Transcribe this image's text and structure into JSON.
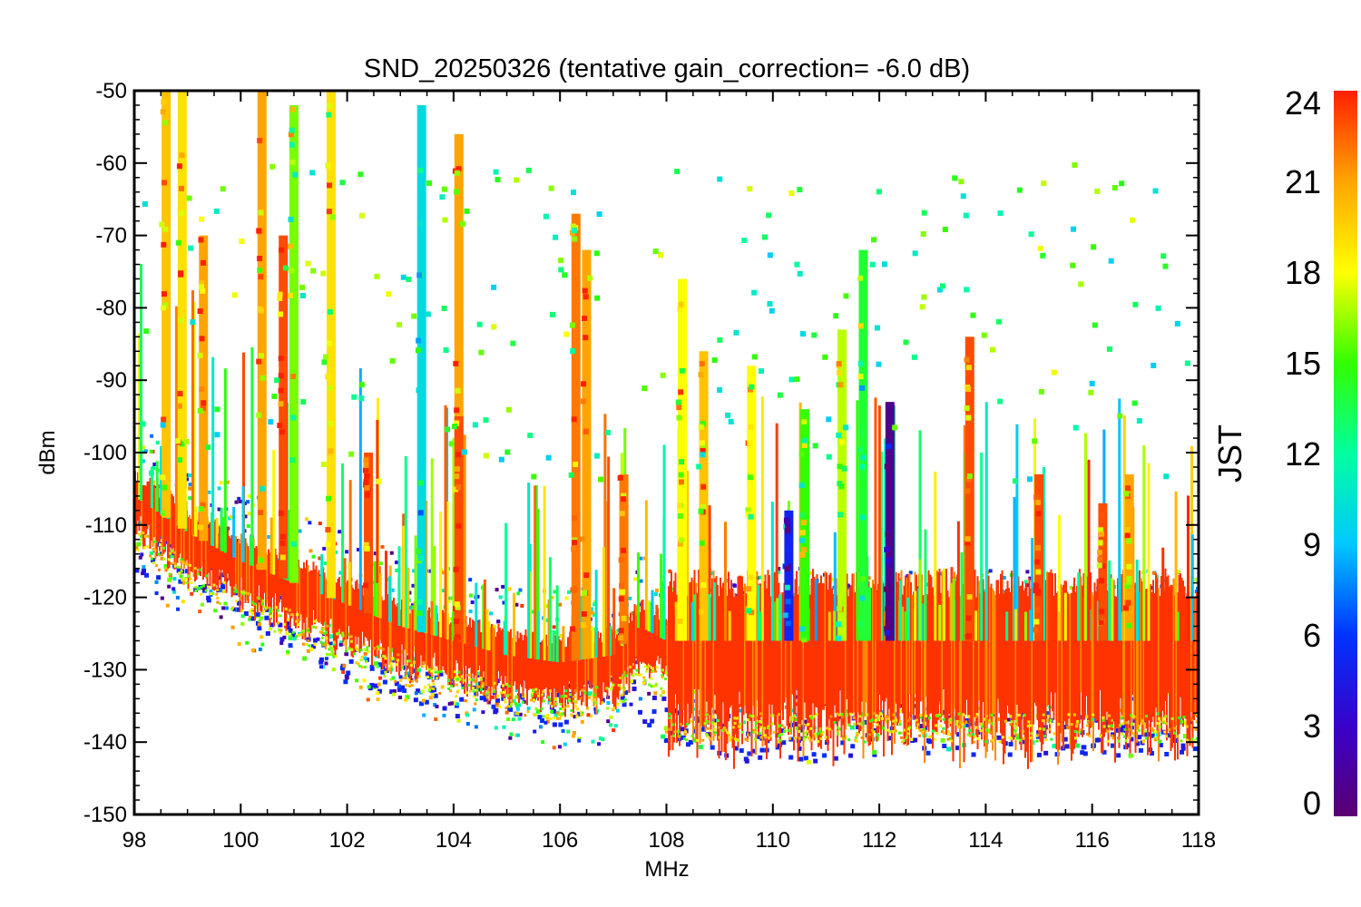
{
  "chart_data": {
    "type": "scatter",
    "title": "SND_20250326 (tentative gain_correction= -6.0 dB)",
    "xlabel": "MHz",
    "ylabel": "dBm",
    "xlim": [
      98,
      118
    ],
    "ylim": [
      -150,
      -50
    ],
    "xticks": [
      "98",
      "100",
      "102",
      "104",
      "106",
      "108",
      "110",
      "112",
      "114",
      "116",
      "118"
    ],
    "yticks": [
      "-50",
      "-60",
      "-70",
      "-80",
      "-90",
      "-100",
      "-110",
      "-120",
      "-130",
      "-140",
      "-150"
    ],
    "colorbar": {
      "label": "JST",
      "range": [
        0,
        24
      ],
      "ticks": [
        "0",
        "3",
        "6",
        "9",
        "12",
        "15",
        "18",
        "21",
        "24"
      ],
      "colormap": "rainbow (purple → blue → cyan → green → yellow → orange → red)"
    },
    "noise_floor": [
      {
        "x": 98,
        "y": -106
      },
      {
        "x": 99,
        "y": -111
      },
      {
        "x": 100,
        "y": -115
      },
      {
        "x": 101,
        "y": -118
      },
      {
        "x": 102,
        "y": -121
      },
      {
        "x": 103,
        "y": -124
      },
      {
        "x": 104,
        "y": -126
      },
      {
        "x": 105,
        "y": -128
      },
      {
        "x": 106,
        "y": -129
      },
      {
        "x": 107,
        "y": -128
      },
      {
        "x": 107.5,
        "y": -124
      },
      {
        "x": 108,
        "y": -126
      },
      {
        "x": 110,
        "y": -126
      },
      {
        "x": 112,
        "y": -126
      },
      {
        "x": 114,
        "y": -126
      },
      {
        "x": 116,
        "y": -126
      },
      {
        "x": 118,
        "y": -126
      }
    ],
    "low_envelope": [
      {
        "x": 98,
        "y": -115
      },
      {
        "x": 99,
        "y": -117
      },
      {
        "x": 100,
        "y": -121
      },
      {
        "x": 101,
        "y": -126
      },
      {
        "x": 102,
        "y": -130
      },
      {
        "x": 103,
        "y": -132
      },
      {
        "x": 104,
        "y": -135
      },
      {
        "x": 105,
        "y": -134
      },
      {
        "x": 106,
        "y": -136
      },
      {
        "x": 107,
        "y": -132
      },
      {
        "x": 108,
        "y": -138
      },
      {
        "x": 110,
        "y": -142
      },
      {
        "x": 112,
        "y": -140
      },
      {
        "x": 114,
        "y": -140
      },
      {
        "x": 116,
        "y": -140
      },
      {
        "x": 118,
        "y": -141
      }
    ],
    "signal_lines": [
      {
        "x": 98.6,
        "ytop": -50,
        "jst": 20
      },
      {
        "x": 98.9,
        "ytop": -50,
        "jst": 19
      },
      {
        "x": 99.3,
        "ytop": -70,
        "jst": 21
      },
      {
        "x": 100.4,
        "ytop": -50,
        "jst": 21
      },
      {
        "x": 100.8,
        "ytop": -70,
        "jst": 23
      },
      {
        "x": 101.0,
        "ytop": -52,
        "jst": 16
      },
      {
        "x": 101.7,
        "ytop": -50,
        "jst": 19
      },
      {
        "x": 102.4,
        "ytop": -100,
        "jst": 23
      },
      {
        "x": 103.4,
        "ytop": -52,
        "jst": 10
      },
      {
        "x": 104.1,
        "ytop": -56,
        "jst": 21
      },
      {
        "x": 104.1,
        "ytop": -95,
        "jst": 23
      },
      {
        "x": 106.3,
        "ytop": -67,
        "jst": 22
      },
      {
        "x": 106.5,
        "ytop": -72,
        "jst": 21
      },
      {
        "x": 107.2,
        "ytop": -103,
        "jst": 22
      },
      {
        "x": 108.3,
        "ytop": -76,
        "jst": 18
      },
      {
        "x": 108.7,
        "ytop": -86,
        "jst": 20
      },
      {
        "x": 109.6,
        "ytop": -88,
        "jst": 18
      },
      {
        "x": 110.3,
        "ytop": -108,
        "jst": 5
      },
      {
        "x": 110.6,
        "ytop": -94,
        "jst": 15
      },
      {
        "x": 111.3,
        "ytop": -83,
        "jst": 17
      },
      {
        "x": 111.7,
        "ytop": -72,
        "jst": 14
      },
      {
        "x": 112.2,
        "ytop": -93,
        "jst": 1
      },
      {
        "x": 113.7,
        "ytop": -84,
        "jst": 23
      },
      {
        "x": 115.0,
        "ytop": -103,
        "jst": 23
      },
      {
        "x": 116.2,
        "ytop": -107,
        "jst": 23
      },
      {
        "x": 116.7,
        "ytop": -103,
        "jst": 21
      }
    ]
  }
}
